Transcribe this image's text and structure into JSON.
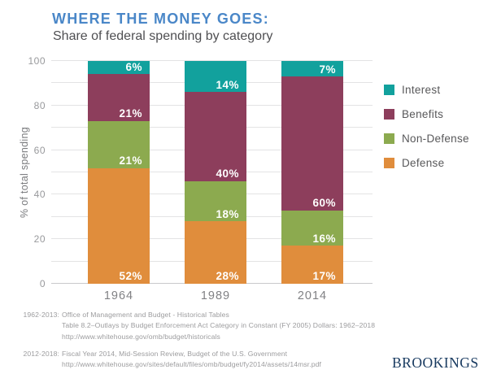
{
  "header": {
    "title": "WHERE THE MONEY GOES:",
    "subtitle": "Share of federal spending by category"
  },
  "chart_data": {
    "type": "bar",
    "stacked": true,
    "title": "WHERE THE MONEY GOES: Share of federal spending by category",
    "categories": [
      "1964",
      "1989",
      "2014"
    ],
    "series": [
      {
        "name": "Interest",
        "color": "#12a19d",
        "values": [
          6,
          14,
          7
        ]
      },
      {
        "name": "Benefits",
        "color": "#8d3e5c",
        "values": [
          21,
          40,
          60
        ]
      },
      {
        "name": "Non-Defense",
        "color": "#8caa4f",
        "values": [
          21,
          18,
          16
        ]
      },
      {
        "name": "Defense",
        "color": "#e08d3c",
        "values": [
          52,
          28,
          17
        ]
      }
    ],
    "xlabel": "",
    "ylabel": "% of total spending",
    "ylim": [
      0,
      100
    ],
    "yticks": [
      0,
      20,
      40,
      60,
      80,
      100
    ],
    "grid_interval": 10,
    "grid": true,
    "legend_position": "right",
    "data_label_format": "{value}%"
  },
  "colors": {
    "title_blue": "#4a87c8",
    "subtitle_gray": "#4f4f52",
    "axis_text": "#98999c",
    "grid_line": "#e3e3e4",
    "baseline": "#c9c9cb",
    "bar_label_white": "#ffffff",
    "footnote_gray": "#9c9c9e",
    "brookings_navy": "#17395f"
  },
  "footnotes": [
    {
      "label": "1962-2013:",
      "lines": [
        "Office of Management and Budget - Historical Tables",
        "Table 8.2–Outlays by Budget Enforcement Act Category in Constant (FY 2005) Dollars: 1962–2018",
        "http://www.whitehouse.gov/omb/budget/historicals"
      ]
    },
    {
      "label": "2012-2018:",
      "lines": [
        "Fiscal Year 2014, Mid-Session Review, Budget of the U.S. Government",
        "http://www.whitehouse.gov/sites/default/files/omb/budget/fy2014/assets/14msr.pdf"
      ]
    }
  ],
  "branding": {
    "wordmark": "BROOKINGS"
  }
}
